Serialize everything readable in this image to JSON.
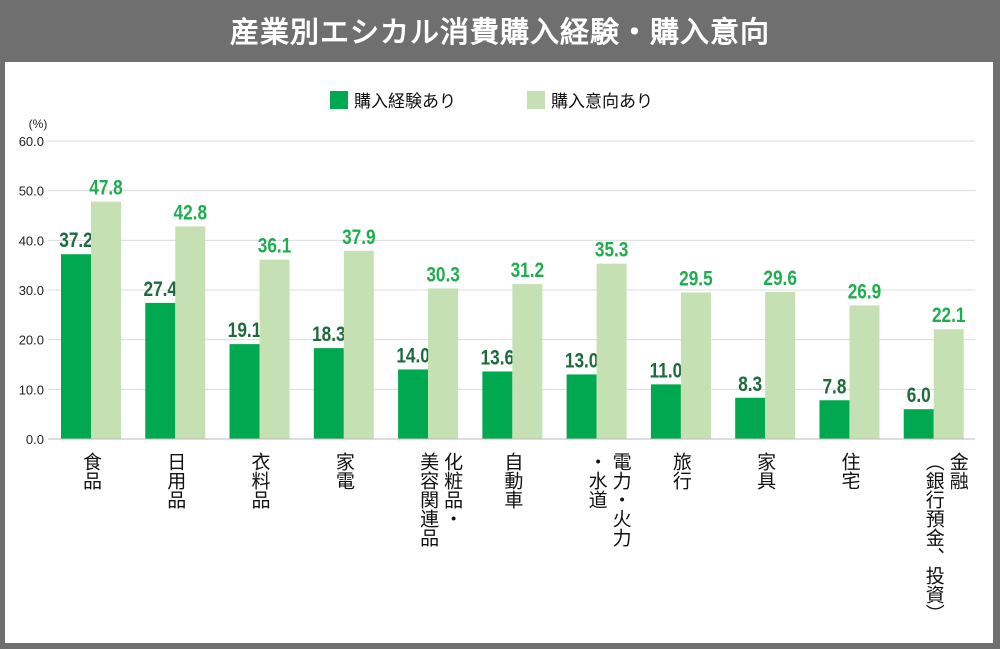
{
  "header": {
    "title": "産業別エシカル消費購入経験・購入意向"
  },
  "chart_data": {
    "type": "bar",
    "title": "産業別エシカル消費購入経験・購入意向",
    "ylabel": "(%)",
    "ylim": [
      0,
      60
    ],
    "yticks": [
      "0.0",
      "10.0",
      "20.0",
      "30.0",
      "40.0",
      "50.0",
      "60.0"
    ],
    "grid": true,
    "legend_position": "top-center",
    "categories": [
      "食品",
      "日用品",
      "衣料品",
      "家電",
      "化粧品・\n美容関連品",
      "自動車",
      "電力・火力\n・水道",
      "旅行",
      "家具",
      "住宅",
      "金融\n（銀行預金、投資）"
    ],
    "series": [
      {
        "name": "購入経験あり",
        "color": "#00a84f",
        "label_color": "#1d6b3c",
        "values": [
          37.2,
          27.4,
          19.1,
          18.3,
          14.0,
          13.6,
          13.0,
          11.0,
          8.3,
          7.8,
          6.0
        ]
      },
      {
        "name": "購入意向あり",
        "color": "#c5e0b3",
        "label_color": "#1fae4f",
        "values": [
          47.8,
          42.8,
          36.1,
          37.9,
          30.3,
          31.2,
          35.3,
          29.5,
          29.6,
          26.9,
          22.1
        ]
      }
    ]
  }
}
